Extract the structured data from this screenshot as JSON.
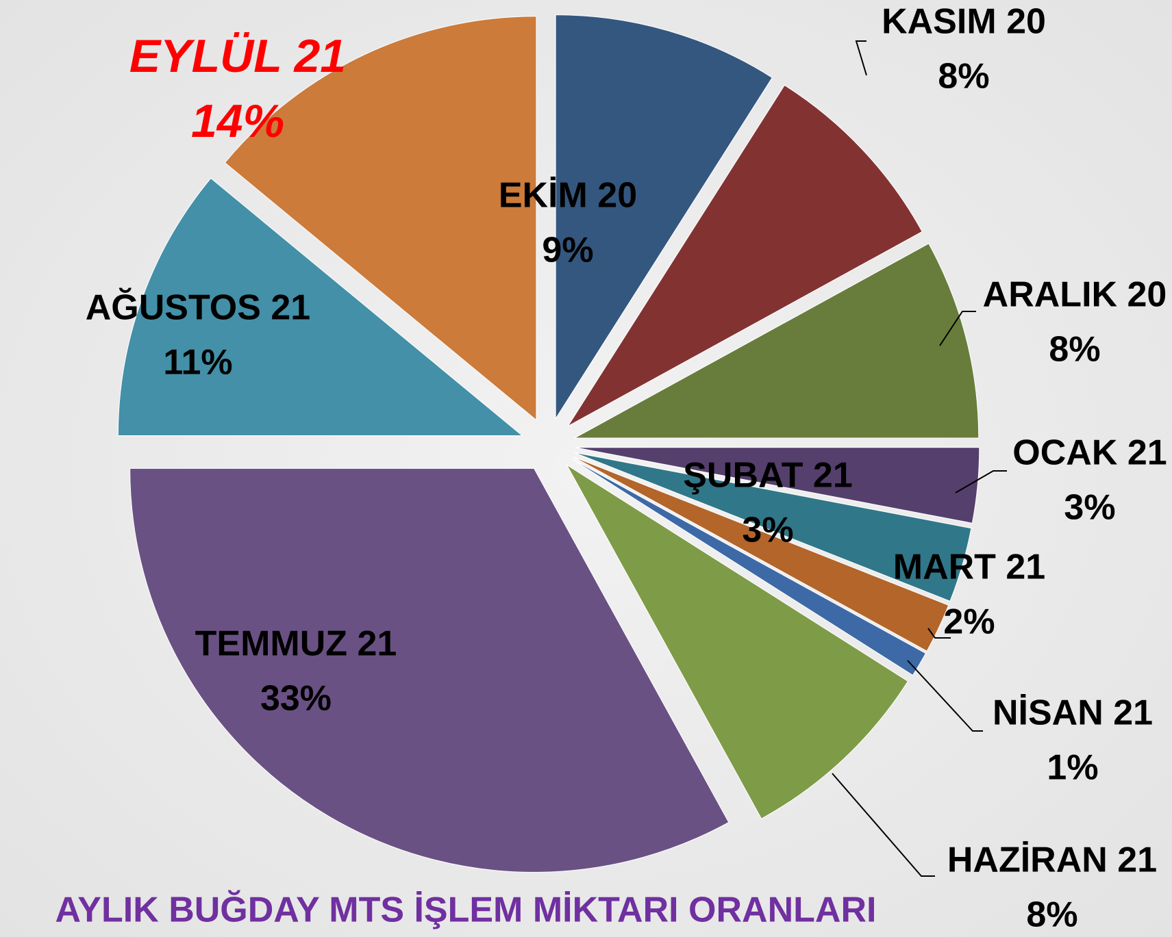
{
  "chart_data": {
    "type": "pie",
    "title": "AYLIK BUĞDAY MTS İŞLEM MİKTARI ORANLARI",
    "categories": [
      "EKİM 20",
      "KASIM 20",
      "ARALIK 20",
      "OCAK 21",
      "ŞUBAT 21",
      "MART 21",
      "NİSAN 21",
      "HAZİRAN 21",
      "TEMMUZ 21",
      "AĞUSTOS 21",
      "EYLÜL 21"
    ],
    "values": [
      9,
      8,
      8,
      3,
      3,
      2,
      1,
      8,
      33,
      11,
      14
    ],
    "value_labels": [
      "9%",
      "8%",
      "8%",
      "3%",
      "3%",
      "2%",
      "1%",
      "8%",
      "33%",
      "11%",
      "14%"
    ],
    "colors": [
      "#34577f",
      "#833232",
      "#687d3b",
      "#553f6c",
      "#31778a",
      "#b3652a",
      "#3d6aa6",
      "#7e9b48",
      "#6a5184",
      "#4390a8",
      "#cc7b3a"
    ],
    "label_colors": [
      "#000000",
      "#000000",
      "#000000",
      "#000000",
      "#000000",
      "#000000",
      "#000000",
      "#000000",
      "#000000",
      "#000000",
      "#ff0000"
    ],
    "title_color": "#7030a0"
  }
}
